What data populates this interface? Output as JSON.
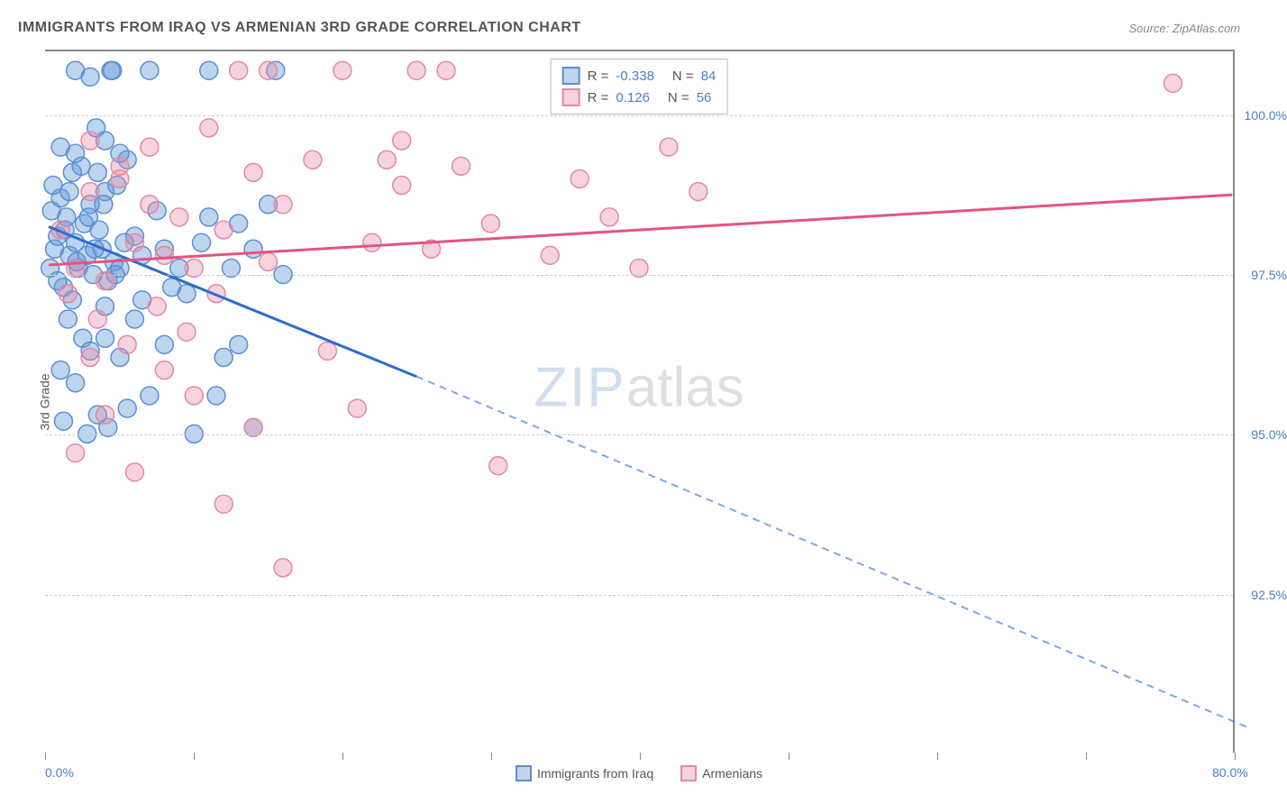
{
  "title": "IMMIGRANTS FROM IRAQ VS ARMENIAN 3RD GRADE CORRELATION CHART",
  "source": "Source: ZipAtlas.com",
  "ylabel": "3rd Grade",
  "watermark_part1": "ZIP",
  "watermark_part2": "atlas",
  "chart": {
    "type": "scatter",
    "xlim": [
      0,
      80
    ],
    "ylim": [
      90,
      101
    ],
    "x_ticks": [
      0,
      10,
      20,
      30,
      40,
      50,
      60,
      70,
      80
    ],
    "x_tick_labels": {
      "0": "0.0%",
      "80": "80.0%"
    },
    "y_gridlines": [
      92.5,
      95.0,
      97.5,
      100.0
    ],
    "y_tick_labels": [
      "92.5%",
      "95.0%",
      "97.5%",
      "100.0%"
    ],
    "grid_color": "#cccccc",
    "border_color": "#888888",
    "tick_label_color": "#4a7ec9",
    "series": [
      {
        "name": "Immigrants from Iraq",
        "label": "Immigrants from Iraq",
        "fill_color": "rgba(100,155,220,0.42)",
        "stroke_color": "#5b8fd0",
        "line_color": "#2e6bd0",
        "R": "-0.338",
        "N": "84",
        "trend": {
          "x1": 0.2,
          "y1": 98.25,
          "x2": 25,
          "y2": 95.9,
          "dash_x2": 81,
          "dash_y2": 90.4
        },
        "points": [
          [
            0.3,
            97.6
          ],
          [
            0.4,
            98.5
          ],
          [
            0.6,
            97.9
          ],
          [
            0.8,
            98.1
          ],
          [
            1,
            98.7
          ],
          [
            1.2,
            97.3
          ],
          [
            1.4,
            98.4
          ],
          [
            1.6,
            97.8
          ],
          [
            1.8,
            99.1
          ],
          [
            2,
            98.0
          ],
          [
            2.2,
            97.6
          ],
          [
            2.4,
            99.2
          ],
          [
            2.6,
            98.3
          ],
          [
            2.8,
            97.8
          ],
          [
            3,
            98.6
          ],
          [
            3.2,
            97.5
          ],
          [
            3.4,
            99.8
          ],
          [
            3.6,
            98.2
          ],
          [
            3.8,
            97.9
          ],
          [
            4,
            98.8
          ],
          [
            4.2,
            97.4
          ],
          [
            4.4,
            100.7
          ],
          [
            4.6,
            97.7
          ],
          [
            4.8,
            98.9
          ],
          [
            5,
            97.6
          ],
          [
            5.5,
            99.3
          ],
          [
            6,
            98.1
          ],
          [
            6.5,
            97.8
          ],
          [
            7,
            100.7
          ],
          [
            7.5,
            98.5
          ],
          [
            8,
            97.9
          ],
          [
            4.5,
            100.7
          ],
          [
            9,
            97.6
          ],
          [
            2,
            100.7
          ],
          [
            3,
            100.6
          ],
          [
            1,
            99.5
          ],
          [
            2,
            99.4
          ],
          [
            3.5,
            99.1
          ],
          [
            4,
            99.6
          ],
          [
            5,
            99.4
          ],
          [
            1.5,
            96.8
          ],
          [
            2.5,
            96.5
          ],
          [
            3,
            96.3
          ],
          [
            4,
            96.5
          ],
          [
            5,
            96.2
          ],
          [
            6,
            96.8
          ],
          [
            8,
            96.4
          ],
          [
            1,
            96.0
          ],
          [
            2,
            95.8
          ],
          [
            3.5,
            95.3
          ],
          [
            1.2,
            95.2
          ],
          [
            2.8,
            95.0
          ],
          [
            4.2,
            95.1
          ],
          [
            5.5,
            95.4
          ],
          [
            7,
            95.6
          ],
          [
            10,
            95.0
          ],
          [
            11.5,
            95.6
          ],
          [
            12,
            96.2
          ],
          [
            13,
            96.4
          ],
          [
            14,
            95.1
          ],
          [
            9.5,
            97.2
          ],
          [
            10.5,
            98.0
          ],
          [
            11,
            98.4
          ],
          [
            11,
            100.7
          ],
          [
            12.5,
            97.6
          ],
          [
            13,
            98.3
          ],
          [
            14,
            97.9
          ],
          [
            15,
            98.6
          ],
          [
            16,
            97.5
          ],
          [
            15.5,
            100.7
          ],
          [
            4,
            97.0
          ],
          [
            6.5,
            97.1
          ],
          [
            8.5,
            97.3
          ],
          [
            1.8,
            97.1
          ],
          [
            0.5,
            98.9
          ],
          [
            0.8,
            97.4
          ],
          [
            1.3,
            98.2
          ],
          [
            1.6,
            98.8
          ],
          [
            2.1,
            97.7
          ],
          [
            2.9,
            98.4
          ],
          [
            3.3,
            97.9
          ],
          [
            3.9,
            98.6
          ],
          [
            4.7,
            97.5
          ],
          [
            5.3,
            98.0
          ]
        ]
      },
      {
        "name": "Armenians",
        "label": "Armenians",
        "fill_color": "rgba(235,140,165,0.38)",
        "stroke_color": "#e08aa5",
        "line_color": "#e6537e",
        "R": "0.126",
        "N": "56",
        "trend": {
          "x1": 0.2,
          "y1": 97.65,
          "x2": 80,
          "y2": 98.75
        },
        "points": [
          [
            1,
            98.2
          ],
          [
            2,
            97.6
          ],
          [
            3,
            98.8
          ],
          [
            4,
            97.4
          ],
          [
            5,
            99.2
          ],
          [
            6,
            98.0
          ],
          [
            7,
            99.5
          ],
          [
            8,
            97.8
          ],
          [
            9,
            98.4
          ],
          [
            10,
            97.6
          ],
          [
            11,
            99.8
          ],
          [
            12,
            98.2
          ],
          [
            13,
            100.7
          ],
          [
            14,
            99.1
          ],
          [
            15,
            97.7
          ],
          [
            16,
            98.6
          ],
          [
            18,
            99.3
          ],
          [
            20,
            100.7
          ],
          [
            22,
            98.0
          ],
          [
            24,
            99.6
          ],
          [
            26,
            97.9
          ],
          [
            28,
            99.2
          ],
          [
            30,
            98.3
          ],
          [
            30.5,
            94.5
          ],
          [
            34,
            97.8
          ],
          [
            36,
            99.0
          ],
          [
            38,
            98.4
          ],
          [
            40,
            97.6
          ],
          [
            42,
            99.5
          ],
          [
            44,
            98.8
          ],
          [
            76,
            100.5
          ],
          [
            3,
            99.6
          ],
          [
            5,
            99.0
          ],
          [
            7,
            98.6
          ],
          [
            1.5,
            97.2
          ],
          [
            3.5,
            96.8
          ],
          [
            5.5,
            96.4
          ],
          [
            7.5,
            97.0
          ],
          [
            9.5,
            96.6
          ],
          [
            11.5,
            97.2
          ],
          [
            2,
            94.7
          ],
          [
            4,
            95.3
          ],
          [
            6,
            94.4
          ],
          [
            8,
            96.0
          ],
          [
            10,
            95.6
          ],
          [
            12,
            93.9
          ],
          [
            14,
            95.1
          ],
          [
            16,
            92.9
          ],
          [
            3,
            96.2
          ],
          [
            19,
            96.3
          ],
          [
            21,
            95.4
          ],
          [
            23,
            99.3
          ],
          [
            25,
            100.7
          ],
          [
            27,
            100.7
          ],
          [
            24,
            98.9
          ],
          [
            15,
            100.7
          ]
        ]
      }
    ]
  }
}
